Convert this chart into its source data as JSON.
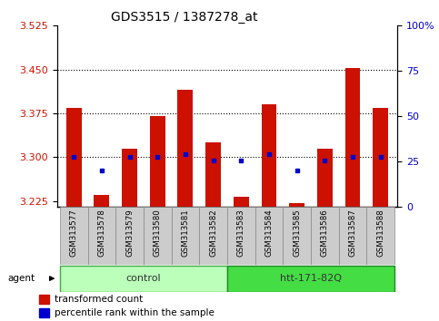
{
  "title": "GDS3515 / 1387278_at",
  "samples": [
    "GSM313577",
    "GSM313578",
    "GSM313579",
    "GSM313580",
    "GSM313581",
    "GSM313582",
    "GSM313583",
    "GSM313584",
    "GSM313585",
    "GSM313586",
    "GSM313587",
    "GSM313588"
  ],
  "transformed_count": [
    3.385,
    3.235,
    3.315,
    3.37,
    3.415,
    3.325,
    3.233,
    3.39,
    3.222,
    3.315,
    3.452,
    3.385
  ],
  "percentile_rank_values": [
    3.3,
    3.278,
    3.3,
    3.3,
    3.305,
    3.294,
    3.294,
    3.305,
    3.278,
    3.294,
    3.3,
    3.3
  ],
  "ylim_left": [
    3.215,
    3.525
  ],
  "ylim_right": [
    0,
    100
  ],
  "yticks_left": [
    3.225,
    3.3,
    3.375,
    3.45,
    3.525
  ],
  "yticks_right": [
    0,
    25,
    50,
    75,
    100
  ],
  "ytick_labels_right": [
    "0",
    "25",
    "50",
    "75",
    "100%"
  ],
  "hlines": [
    3.3,
    3.375,
    3.45
  ],
  "bar_color": "#cc1100",
  "dot_color": "#0000cc",
  "bar_bottom": 3.215,
  "groups": [
    {
      "label": "control",
      "start": 0,
      "end": 5,
      "color": "#bbffbb",
      "edgecolor": "#44aa44"
    },
    {
      "label": "htt-171-82Q",
      "start": 6,
      "end": 11,
      "color": "#44dd44",
      "edgecolor": "#228822"
    }
  ],
  "agent_label": "agent",
  "legend_items": [
    {
      "color": "#cc1100",
      "label": "transformed count"
    },
    {
      "color": "#0000cc",
      "label": "percentile rank within the sample"
    }
  ],
  "left_color": "#cc1100",
  "right_color": "#0000cc",
  "background_plot": "#ffffff",
  "title_fontsize": 10,
  "tick_fontsize": 8,
  "bar_width": 0.55
}
